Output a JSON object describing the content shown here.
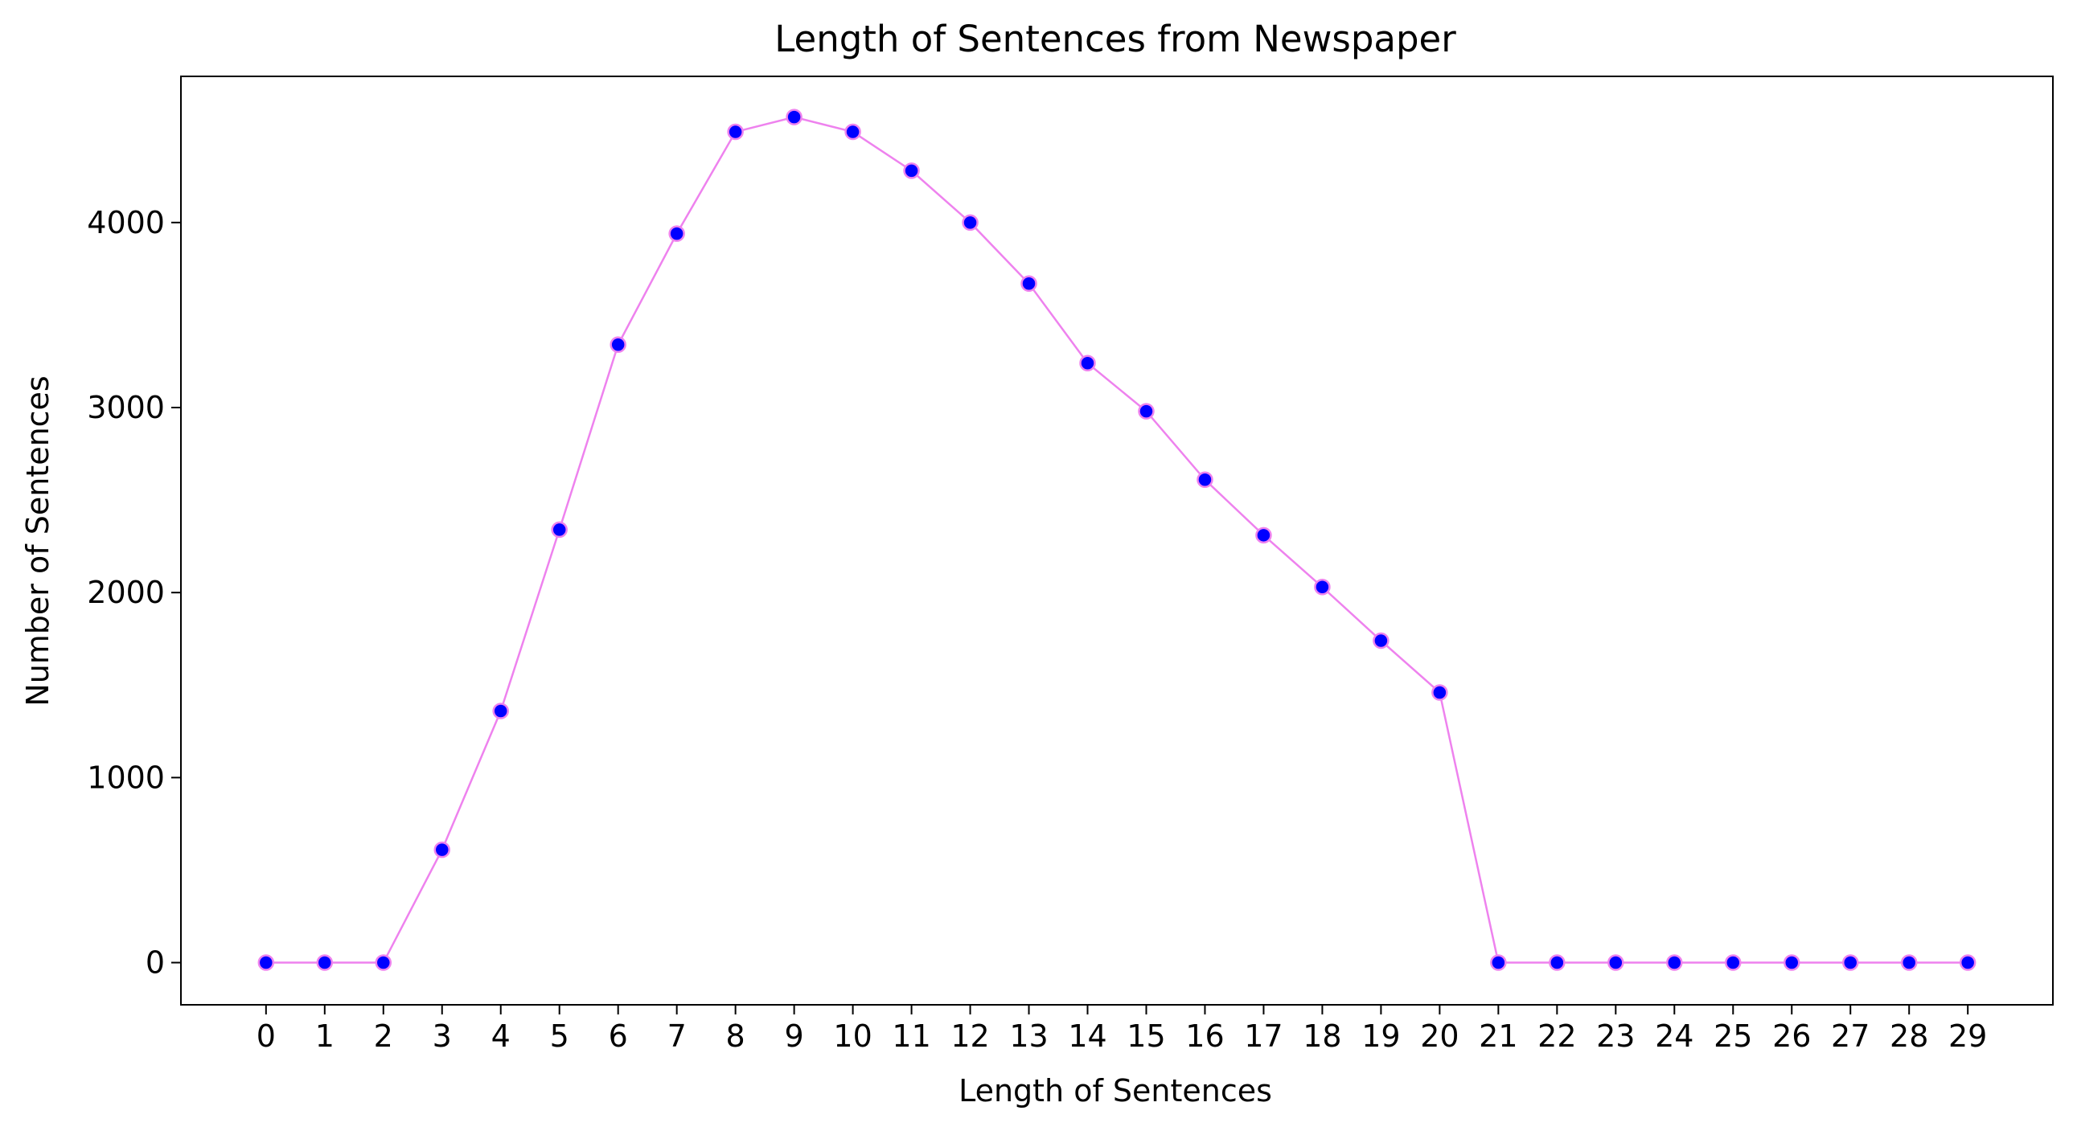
{
  "chart_data": {
    "type": "line",
    "title": "Length of Sentences from Newspaper",
    "xlabel": "Length of Sentences",
    "ylabel": "Number of Sentences",
    "x": [
      0,
      1,
      2,
      3,
      4,
      5,
      6,
      7,
      8,
      9,
      10,
      11,
      12,
      13,
      14,
      15,
      16,
      17,
      18,
      19,
      20,
      21,
      22,
      23,
      24,
      25,
      26,
      27,
      28,
      29
    ],
    "series": [
      {
        "values": [
          0,
          0,
          0,
          610,
          1360,
          2340,
          3340,
          3940,
          4490,
          4570,
          4490,
          4280,
          4000,
          3670,
          3240,
          2980,
          2610,
          2310,
          2030,
          1740,
          1460,
          0,
          0,
          0,
          0,
          0,
          0,
          0,
          0,
          0
        ],
        "line_color": "#ee82ee",
        "marker_color": "#0000ff",
        "marker_edge_color": "#ee82ee"
      }
    ],
    "xticks": [
      "0",
      "1",
      "2",
      "3",
      "4",
      "5",
      "6",
      "7",
      "8",
      "9",
      "10",
      "11",
      "12",
      "13",
      "14",
      "15",
      "16",
      "17",
      "18",
      "19",
      "20",
      "21",
      "22",
      "23",
      "24",
      "25",
      "26",
      "27",
      "28",
      "29"
    ],
    "yticks": [
      0,
      1000,
      2000,
      3000,
      4000
    ],
    "ytick_labels": [
      "0",
      "1000",
      "2000",
      "3000",
      "4000"
    ],
    "xlim": [
      -1.45,
      30.45
    ],
    "ylim": [
      -228,
      4790
    ],
    "grid": false
  }
}
